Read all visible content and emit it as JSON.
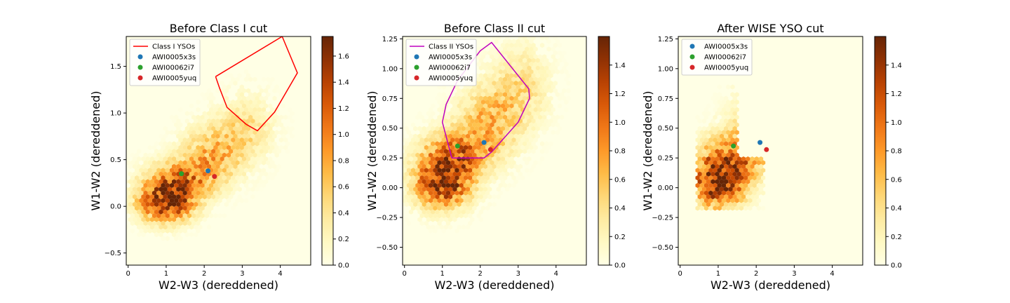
{
  "chart_data": [
    {
      "type": "heatmap",
      "subtype": "hexbin-with-markers",
      "title": "Before Class I cut",
      "xlabel": "W2-W3 (dereddened)",
      "ylabel": "W1-W2 (dereddened)",
      "xlim": [
        -0.05,
        4.8
      ],
      "ylim": [
        -0.63,
        1.82
      ],
      "xticks": [
        0,
        1,
        2,
        3,
        4
      ],
      "yticks": [
        -0.5,
        0.0,
        0.5,
        1.0,
        1.5
      ],
      "ytick_labels": [
        "−0.5",
        "0.0",
        "0.5",
        "1.0",
        "1.5"
      ],
      "colorbar": {
        "colormap": "YlOrBr",
        "range": [
          0,
          1.75
        ],
        "ticks": [
          0.0,
          0.2,
          0.4,
          0.6,
          0.8,
          1.0,
          1.2,
          1.4,
          1.6
        ]
      },
      "density_max": 1.75,
      "cut_polygon": {
        "name": "Class I YSOs",
        "color": "#ff0000",
        "points": [
          [
            2.3,
            1.39
          ],
          [
            2.4,
            1.27
          ],
          [
            2.6,
            1.06
          ],
          [
            3.1,
            0.88
          ],
          [
            3.4,
            0.81
          ],
          [
            3.85,
            1.01
          ],
          [
            4.45,
            1.43
          ],
          [
            4.05,
            1.82
          ],
          [
            2.3,
            1.39
          ]
        ]
      },
      "legend_position": "upper-left",
      "markers": [
        {
          "name": "AWI0005x3s",
          "x": 2.1,
          "y": 0.38,
          "color": "#1f77b4"
        },
        {
          "name": "AWI00062i7",
          "x": 1.4,
          "y": 0.35,
          "color": "#2ca02c"
        },
        {
          "name": "AWI0005yuq",
          "x": 2.27,
          "y": 0.32,
          "color": "#d62728"
        }
      ]
    },
    {
      "type": "heatmap",
      "subtype": "hexbin-with-markers",
      "title": "Before Class II cut",
      "xlabel": "W2-W3 (dereddened)",
      "ylabel": "W1-W2 (dereddened)",
      "xlim": [
        -0.05,
        4.8
      ],
      "ylim": [
        -0.65,
        1.27
      ],
      "xticks": [
        0,
        1,
        2,
        3,
        4
      ],
      "yticks": [
        -0.5,
        -0.25,
        0.0,
        0.25,
        0.5,
        0.75,
        1.0,
        1.25
      ],
      "ytick_labels": [
        "−0.50",
        "−0.25",
        "0.00",
        "0.25",
        "0.50",
        "0.75",
        "1.00",
        "1.25"
      ],
      "colorbar": {
        "colormap": "YlOrBr",
        "range": [
          0,
          1.6
        ],
        "ticks": [
          0.0,
          0.2,
          0.4,
          0.6,
          0.8,
          1.0,
          1.2,
          1.4
        ]
      },
      "density_max": 1.6,
      "cut_polygon": {
        "name": "Class II YSOs",
        "color": "#bf00bf",
        "points": [
          [
            1.25,
            0.25
          ],
          [
            2.1,
            0.25
          ],
          [
            2.3,
            0.3
          ],
          [
            3.0,
            0.55
          ],
          [
            3.3,
            0.75
          ],
          [
            3.28,
            0.83
          ],
          [
            2.3,
            1.22
          ],
          [
            2.0,
            1.15
          ],
          [
            1.4,
            0.9
          ],
          [
            1.1,
            0.7
          ],
          [
            1.0,
            0.55
          ],
          [
            1.25,
            0.25
          ]
        ]
      },
      "legend_position": "upper-left",
      "markers": [
        {
          "name": "AWI0005x3s",
          "x": 2.1,
          "y": 0.38,
          "color": "#1f77b4"
        },
        {
          "name": "AWI00062i7",
          "x": 1.4,
          "y": 0.35,
          "color": "#2ca02c"
        },
        {
          "name": "AWI0005yuq",
          "x": 2.27,
          "y": 0.32,
          "color": "#d62728"
        }
      ]
    },
    {
      "type": "heatmap",
      "subtype": "hexbin-with-markers",
      "title": "After WISE YSO cut",
      "xlabel": "W2-W3 (dereddened)",
      "ylabel": "W1-W2 (dereddened)",
      "xlim": [
        -0.05,
        4.8
      ],
      "ylim": [
        -0.65,
        1.27
      ],
      "xticks": [
        0,
        1,
        2,
        3,
        4
      ],
      "yticks": [
        -0.5,
        -0.25,
        0.0,
        0.25,
        0.5,
        0.75,
        1.0,
        1.25
      ],
      "ytick_labels": [
        "−0.50",
        "−0.25",
        "0.00",
        "0.25",
        "0.50",
        "0.75",
        "1.00",
        "1.25"
      ],
      "colorbar": {
        "colormap": "YlOrBr",
        "range": [
          0,
          1.6
        ],
        "ticks": [
          0.0,
          0.2,
          0.4,
          0.6,
          0.8,
          1.0,
          1.2,
          1.4
        ]
      },
      "density_max": 1.6,
      "cut_polygon": null,
      "legend_position": "upper-left",
      "markers": [
        {
          "name": "AWI0005x3s",
          "x": 2.1,
          "y": 0.38,
          "color": "#1f77b4"
        },
        {
          "name": "AWI00062i7",
          "x": 1.4,
          "y": 0.35,
          "color": "#2ca02c"
        },
        {
          "name": "AWI0005yuq",
          "x": 2.27,
          "y": 0.32,
          "color": "#d62728"
        }
      ]
    }
  ]
}
